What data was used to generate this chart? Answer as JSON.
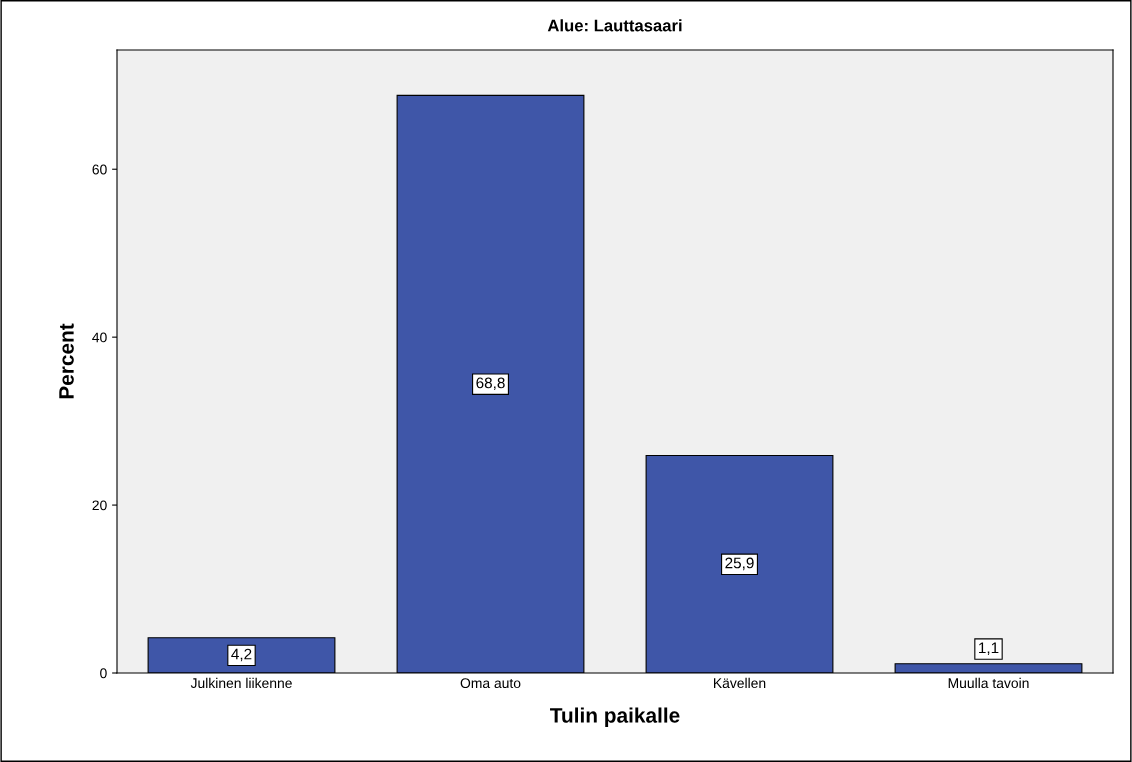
{
  "chart_data": {
    "type": "bar",
    "title": "Alue: Lauttasaari",
    "xlabel": "Tulin paikalle",
    "ylabel": "Percent",
    "categories": [
      "Julkinen liikenne",
      "Oma auto",
      "Kävellen",
      "Muulla tavoin"
    ],
    "values": [
      4.2,
      68.8,
      25.9,
      1.1
    ],
    "value_labels": [
      "4,2",
      "68,8",
      "25,9",
      "1,1"
    ],
    "color": "#3f56a8",
    "ylim": [
      0,
      74.2
    ],
    "yticks": [
      0,
      20,
      40,
      60
    ],
    "grid": false
  }
}
